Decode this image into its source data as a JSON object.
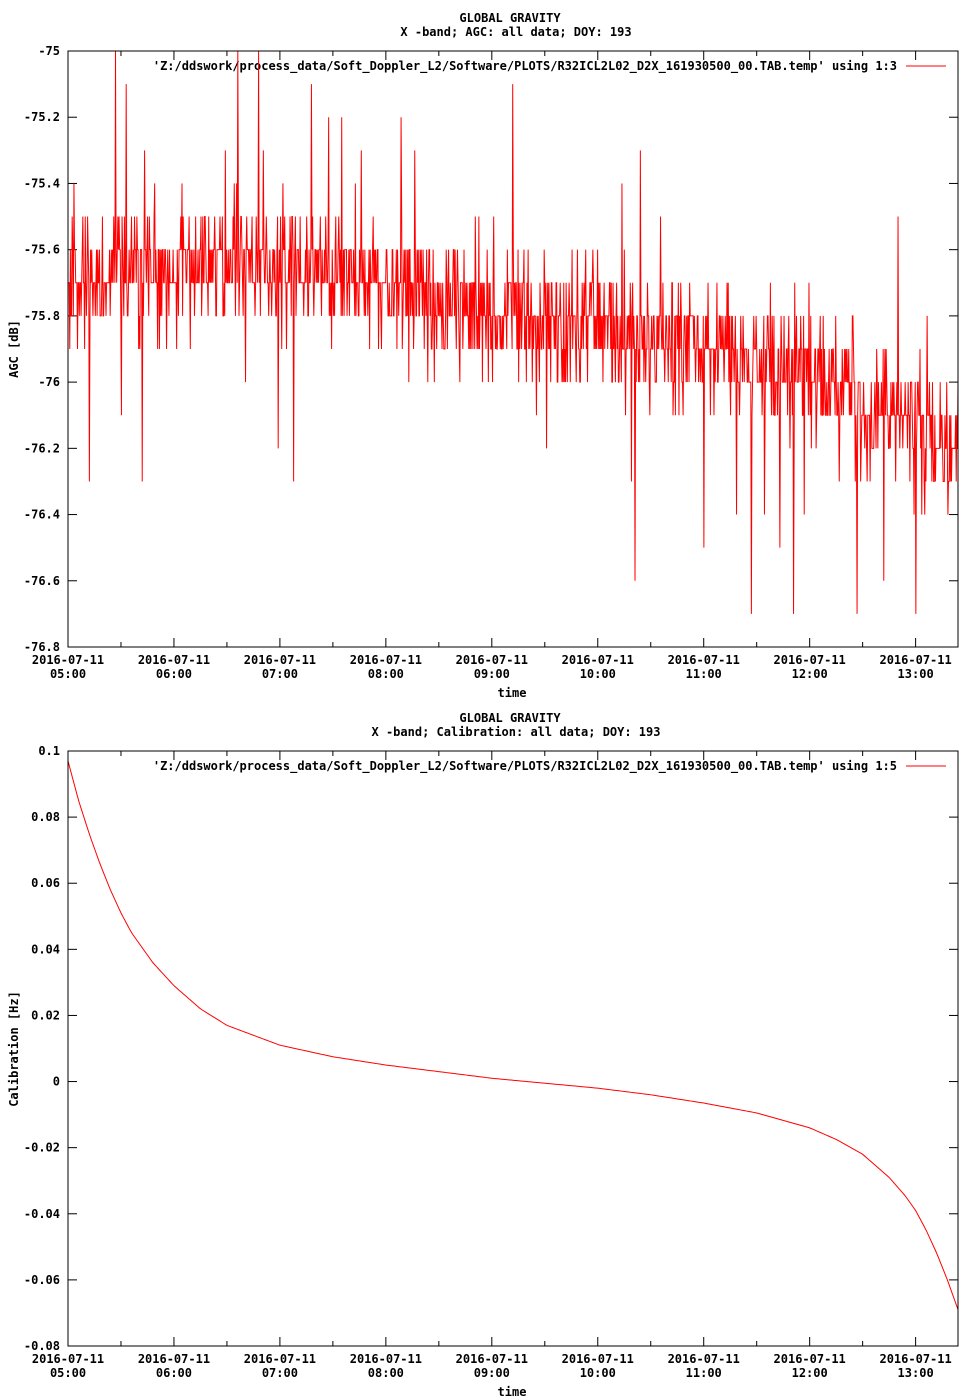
{
  "chart_data": [
    {
      "type": "line",
      "title": "GLOBAL GRAVITY",
      "subtitle": "X -band; AGC: all data; DOY: 193",
      "xlabel": "time",
      "ylabel": "AGC [dB]",
      "ylim": [
        -76.8,
        -75.0
      ],
      "yticks": [
        -75,
        -75.2,
        -75.4,
        -75.6,
        -75.8,
        -76,
        -76.2,
        -76.4,
        -76.6,
        -76.8
      ],
      "ytick_labels": [
        "-75",
        "-75.2",
        "-75.4",
        "-75.6",
        "-75.8",
        "-76",
        "-76.2",
        "-76.4",
        "-76.6",
        "-76.8"
      ],
      "xlim_hours": [
        5.0,
        13.4
      ],
      "xtick_date": "2016-07-11",
      "xticks": [
        "05:00",
        "06:00",
        "07:00",
        "08:00",
        "09:00",
        "10:00",
        "11:00",
        "12:00",
        "13:00"
      ],
      "legend": "'Z:/ddswork/process_data/Soft_Doppler_L2/Software/PLOTS/R32ICL2L02_D2X_161930500_00.TAB.temp' using 1:3",
      "legend_position": "top-right",
      "color": "#ff0000",
      "series": [
        {
          "trend": {
            "x": [
              5.0,
              6.0,
              7.0,
              8.0,
              9.0,
              10.0,
              11.0,
              12.0,
              13.0,
              13.4
            ],
            "y": [
              -75.7,
              -75.66,
              -75.64,
              -75.7,
              -75.78,
              -75.84,
              -75.9,
              -75.98,
              -76.12,
              -76.18
            ]
          },
          "spread": 0.18,
          "quantization": 0.1,
          "n_points": 1500,
          "spikes": [
            [
              5.45,
              -75.0
            ],
            [
              6.6,
              -75.0
            ],
            [
              6.8,
              -75.05
            ],
            [
              5.55,
              -75.1
            ],
            [
              7.3,
              -75.1
            ],
            [
              9.2,
              -75.1
            ],
            [
              5.2,
              -76.3
            ],
            [
              5.7,
              -76.3
            ],
            [
              10.35,
              -76.6
            ],
            [
              11.45,
              -76.7
            ],
            [
              11.85,
              -76.7
            ],
            [
              12.45,
              -76.7
            ],
            [
              13.0,
              -76.7
            ],
            [
              12.7,
              -76.6
            ],
            [
              11.0,
              -76.5
            ]
          ]
        }
      ]
    },
    {
      "type": "line",
      "title": "GLOBAL GRAVITY",
      "subtitle": "X -band; Calibration: all data; DOY: 193",
      "xlabel": "time",
      "ylabel": "Calibration [Hz]",
      "ylim": [
        -0.08,
        0.1
      ],
      "yticks": [
        0.1,
        0.08,
        0.06,
        0.04,
        0.02,
        0,
        -0.02,
        -0.04,
        -0.06,
        -0.08
      ],
      "ytick_labels": [
        "0.1",
        "0.08",
        "0.06",
        "0.04",
        "0.02",
        "0",
        "-0.02",
        "-0.04",
        "-0.06",
        "-0.08"
      ],
      "xlim_hours": [
        5.0,
        13.4
      ],
      "xtick_date": "2016-07-11",
      "xticks": [
        "05:00",
        "06:00",
        "07:00",
        "08:00",
        "09:00",
        "10:00",
        "11:00",
        "12:00",
        "13:00"
      ],
      "legend": "'Z:/ddswork/process_data/Soft_Doppler_L2/Software/PLOTS/R32ICL2L02_D2X_161930500_00.TAB.temp' using 1:5",
      "legend_position": "top-right",
      "color": "#ff0000",
      "series": [
        {
          "x": [
            5.0,
            5.1,
            5.2,
            5.3,
            5.4,
            5.5,
            5.6,
            5.8,
            6.0,
            6.25,
            6.5,
            6.75,
            7.0,
            7.5,
            8.0,
            8.5,
            9.0,
            9.5,
            10.0,
            10.5,
            11.0,
            11.5,
            12.0,
            12.25,
            12.5,
            12.75,
            12.9,
            13.0,
            13.1,
            13.2,
            13.3,
            13.4
          ],
          "y": [
            0.097,
            0.085,
            0.075,
            0.066,
            0.058,
            0.051,
            0.045,
            0.036,
            0.029,
            0.022,
            0.017,
            0.014,
            0.011,
            0.0075,
            0.005,
            0.003,
            0.001,
            -0.0005,
            -0.002,
            -0.004,
            -0.0065,
            -0.0095,
            -0.014,
            -0.0175,
            -0.022,
            -0.029,
            -0.0345,
            -0.039,
            -0.045,
            -0.052,
            -0.06,
            -0.069
          ]
        }
      ]
    }
  ]
}
